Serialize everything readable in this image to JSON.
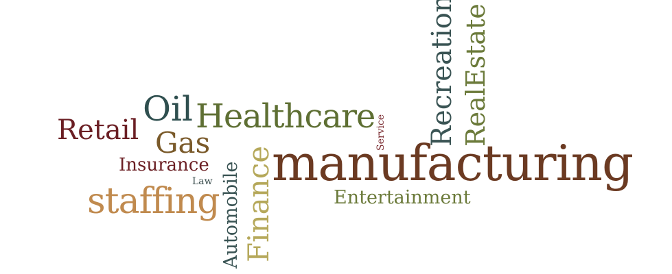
{
  "words": {
    "manufacturing": {
      "text": "manufacturing",
      "color": "#6b3a22"
    },
    "healthcare": {
      "text": "Healthcare",
      "color": "#5e6f33"
    },
    "oil": {
      "text": "Oil",
      "color": "#2f4f4f"
    },
    "retail": {
      "text": "Retail",
      "color": "#6b1f24"
    },
    "gas": {
      "text": "Gas",
      "color": "#7a5a2a"
    },
    "insurance": {
      "text": "Insurance",
      "color": "#6b1f24"
    },
    "law": {
      "text": "Law",
      "color": "#3a4d4d"
    },
    "staffing": {
      "text": "staffing",
      "color": "#c08a4e"
    },
    "entertainment": {
      "text": "Entertainment",
      "color": "#6b7a3a"
    },
    "automobile": {
      "text": "Automobile",
      "color": "#3a5454"
    },
    "finance": {
      "text": "Finance",
      "color": "#b5a85a"
    },
    "service": {
      "text": "Service",
      "color": "#7a2a2f"
    },
    "recreation": {
      "text": "Recreation",
      "color": "#3a5454"
    },
    "realestate": {
      "text": "RealEstate",
      "color": "#6b7a3a"
    }
  }
}
